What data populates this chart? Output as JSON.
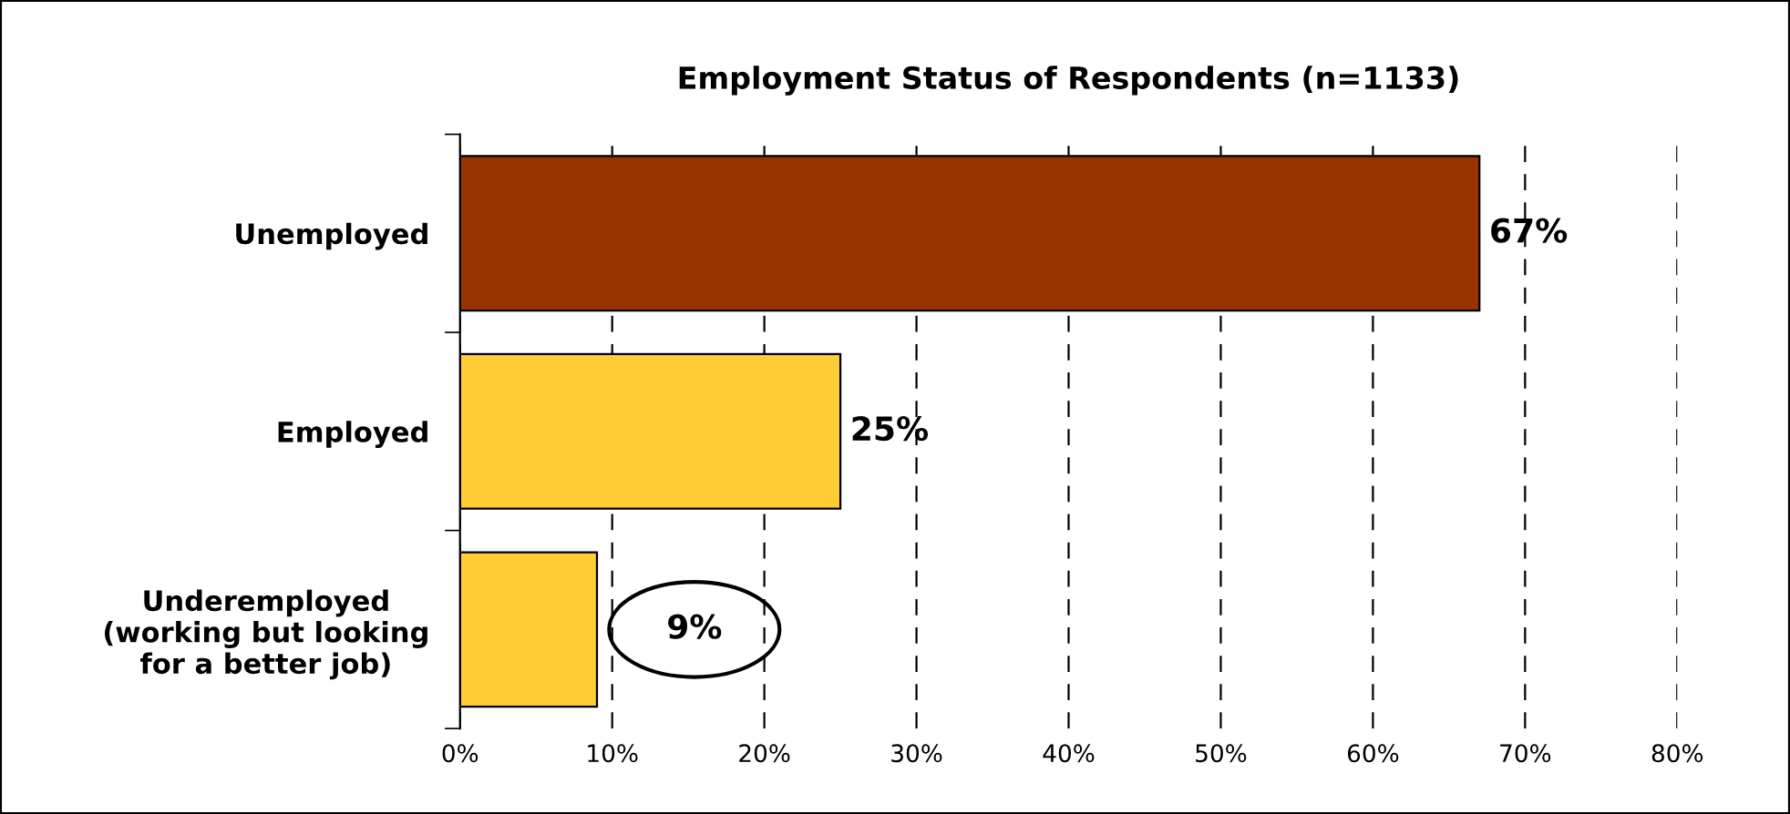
{
  "chart_data": {
    "type": "bar",
    "orientation": "horizontal",
    "title": "Employment Status of Respondents (n=1133)",
    "categories": [
      "Unemployed",
      "Employed",
      "Underemployed\n(working but looking\nfor a better job)"
    ],
    "values": [
      67,
      25,
      9
    ],
    "colors": [
      "#993300",
      "#ffcc33",
      "#ffcc33"
    ],
    "value_labels": [
      "67%",
      "25%",
      "9%"
    ],
    "xlim": [
      0,
      80
    ],
    "xticks": [
      {
        "value": 0,
        "label": "0%"
      },
      {
        "value": 10,
        "label": "10%"
      },
      {
        "value": 20,
        "label": "20%"
      },
      {
        "value": 30,
        "label": "30%"
      },
      {
        "value": 40,
        "label": "40%"
      },
      {
        "value": 50,
        "label": "50%"
      },
      {
        "value": 60,
        "label": "60%"
      },
      {
        "value": 70,
        "label": "70%"
      },
      {
        "value": 80,
        "label": "80%"
      }
    ],
    "grid": "x",
    "line_style": "dashed",
    "legend": false
  }
}
